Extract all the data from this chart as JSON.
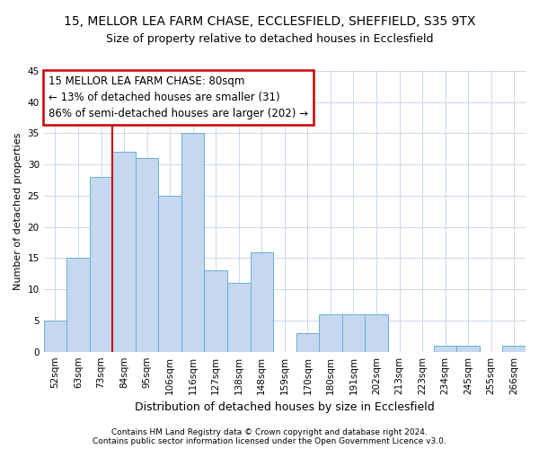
{
  "title1": "15, MELLOR LEA FARM CHASE, ECCLESFIELD, SHEFFIELD, S35 9TX",
  "title2": "Size of property relative to detached houses in Ecclesfield",
  "xlabel": "Distribution of detached houses by size in Ecclesfield",
  "ylabel": "Number of detached properties",
  "categories": [
    "52sqm",
    "63sqm",
    "73sqm",
    "84sqm",
    "95sqm",
    "106sqm",
    "116sqm",
    "127sqm",
    "138sqm",
    "148sqm",
    "159sqm",
    "170sqm",
    "180sqm",
    "191sqm",
    "202sqm",
    "213sqm",
    "223sqm",
    "234sqm",
    "245sqm",
    "255sqm",
    "266sqm"
  ],
  "values": [
    5,
    15,
    28,
    32,
    31,
    25,
    35,
    13,
    11,
    16,
    0,
    3,
    6,
    6,
    6,
    0,
    0,
    1,
    1,
    0,
    1
  ],
  "bar_color": "#c5d8ef",
  "bar_edge_color": "#6aaed6",
  "vline_x": 2.5,
  "vline_color": "#cc0000",
  "annotation_text": "15 MELLOR LEA FARM CHASE: 80sqm\n← 13% of detached houses are smaller (31)\n86% of semi-detached houses are larger (202) →",
  "annotation_box_color": "#cc0000",
  "ylim": [
    0,
    45
  ],
  "yticks": [
    0,
    5,
    10,
    15,
    20,
    25,
    30,
    35,
    40,
    45
  ],
  "footer1": "Contains HM Land Registry data © Crown copyright and database right 2024.",
  "footer2": "Contains public sector information licensed under the Open Government Licence v3.0.",
  "bg_color": "#ffffff",
  "grid_color": "#c8d8e8",
  "title1_fontsize": 10,
  "title2_fontsize": 9,
  "annot_fontsize": 8.5,
  "ylabel_fontsize": 8,
  "xlabel_fontsize": 9,
  "tick_fontsize": 7.5,
  "footer_fontsize": 6.5
}
